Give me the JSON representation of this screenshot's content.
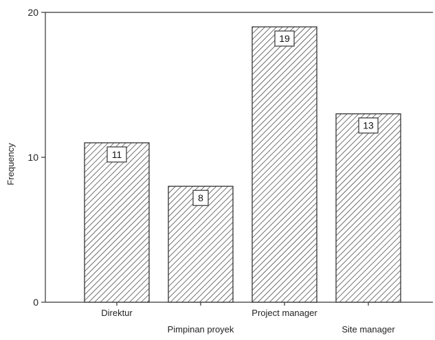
{
  "chart_data": {
    "type": "bar",
    "categories": [
      "Direktur",
      "Pimpinan proyek",
      "Project manager",
      "Site manager"
    ],
    "values": [
      11,
      8,
      19,
      13
    ],
    "ylabel": "Frequency",
    "xlabel": "",
    "ylim": [
      0,
      20
    ],
    "yticks": [
      0,
      10,
      20
    ],
    "grid": false,
    "bar_style": "diagonal-hatch",
    "colors": {
      "bar_fill": "#ffffff",
      "hatch": "#333333",
      "axis": "#333333"
    }
  }
}
